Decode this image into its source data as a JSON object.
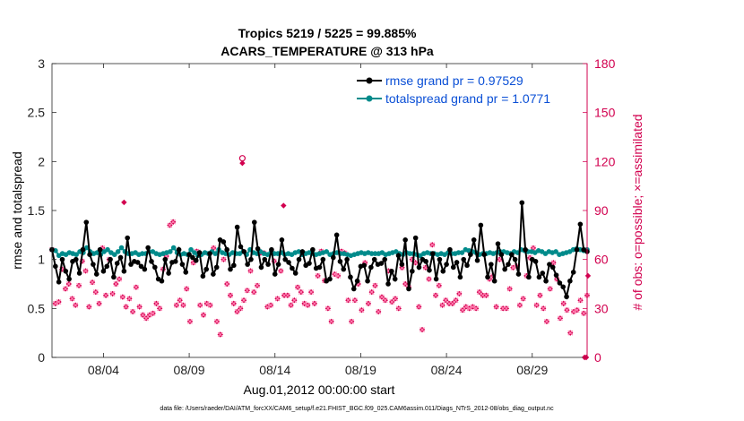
{
  "chart_data": {
    "type": "line",
    "title": "Tropics 5219 / 5225 = 99.885%",
    "subtitle": "ACARS_TEMPERATURE @ 313 hPa",
    "xlabel": "Aug.01,2012 00:00:00 start",
    "ylabel": "rmse and totalspread",
    "ylabel_right": "# of obs: o=possible; ×=assimilated",
    "footnote": "data file: /Users/raeder/DAI/ATM_forcXX/CAM6_setup/f.e21.FHIST_BGC.f09_025.CAM6assim.011/Diags_NTrS_2012-08/obs_diag_output.nc",
    "xlim": [
      1,
      32.2
    ],
    "ylim": [
      0,
      3
    ],
    "ylim_right": [
      0,
      180
    ],
    "x_ticks": [
      {
        "day": 4,
        "label": "08/04"
      },
      {
        "day": 9,
        "label": "08/09"
      },
      {
        "day": 14,
        "label": "08/14"
      },
      {
        "day": 19,
        "label": "08/19"
      },
      {
        "day": 24,
        "label": "08/24"
      },
      {
        "day": 29,
        "label": "08/29"
      }
    ],
    "y_ticks": [
      {
        "value": 0,
        "label": "0"
      },
      {
        "value": 0.5,
        "label": "0.5"
      },
      {
        "value": 1,
        "label": "1"
      },
      {
        "value": 1.5,
        "label": "1.5"
      },
      {
        "value": 2,
        "label": "2"
      },
      {
        "value": 2.5,
        "label": "2.5"
      },
      {
        "value": 3,
        "label": "3"
      }
    ],
    "y_ticks_right": [
      {
        "value": 0,
        "label": "0"
      },
      {
        "value": 30,
        "label": "30"
      },
      {
        "value": 60,
        "label": "60"
      },
      {
        "value": 90,
        "label": "90"
      },
      {
        "value": 120,
        "label": "120"
      },
      {
        "value": 150,
        "label": "150"
      },
      {
        "value": 180,
        "label": "180"
      }
    ],
    "series": [
      {
        "name": "rmse grand pr = 0.97529",
        "color": "#000000",
        "marker": "filled-circle",
        "values": [
          1.1,
          0.93,
          0.77,
          1.0,
          0.88,
          0.8,
          0.98,
          1.0,
          0.86,
          1.1,
          1.38,
          1.05,
          0.95,
          0.85,
          1.1,
          0.88,
          0.93,
          1.0,
          0.82,
          0.96,
          1.02,
          0.88,
          1.22,
          0.95,
          0.98,
          0.97,
          0.93,
          0.9,
          1.12,
          0.98,
          0.92,
          0.8,
          0.78,
          1.0,
          0.86,
          0.97,
          0.98,
          1.1,
          0.95,
          0.87,
          1.05,
          1.02,
          0.99,
          1.07,
          0.83,
          0.9,
          1.06,
          0.85,
          0.92,
          1.2,
          1.18,
          1.1,
          0.9,
          0.94,
          1.33,
          1.13,
          1.08,
          0.95,
          1.0,
          1.38,
          1.11,
          0.92,
          1.0,
          0.95,
          1.1,
          0.85,
          0.95,
          1.2,
          1.0,
          0.97,
          0.91,
          0.86,
          1.0,
          1.08,
          0.94,
          0.96,
          1.1,
          0.91,
          0.92,
          1.0,
          0.78,
          0.8,
          1.02,
          1.25,
          0.98,
          0.9,
          1.0,
          0.82,
          0.7,
          0.78,
          0.93,
          0.94,
          0.78,
          0.92,
          1.0,
          0.95,
          0.96,
          1.0,
          0.75,
          0.88,
          0.8,
          1.04,
          0.95,
          1.2,
          0.7,
          0.88,
          1.22,
          0.92,
          1.0,
          0.98,
          0.89,
          1.06,
          0.8,
          1.0,
          0.88,
          0.95,
          1.1,
          0.92,
          0.97,
          0.82,
          1.0,
          0.94,
          1.05,
          1.2,
          0.99,
          1.35,
          1.05,
          0.82,
          0.95,
          0.78,
          1.16,
          1.05,
          0.9,
          0.95,
          1.05,
          1.0,
          0.85,
          1.58,
          1.1,
          0.82,
          1.0,
          0.98,
          0.82,
          0.86,
          0.78,
          0.95,
          0.92,
          0.84,
          0.76,
          0.72,
          0.62,
          0.78,
          0.87,
          1.1,
          1.36,
          1.1,
          1.08
        ]
      },
      {
        "name": "totalspread grand pr = 1.0771",
        "color": "#008b8b",
        "marker": "filled-circle",
        "values": [
          1.1,
          1.09,
          1.04,
          1.06,
          1.05,
          1.07,
          1.06,
          1.05,
          1.08,
          1.07,
          1.12,
          1.08,
          1.06,
          1.07,
          1.05,
          1.08,
          1.1,
          1.07,
          1.05,
          1.08,
          1.12,
          1.08,
          1.06,
          1.06,
          1.07,
          1.05,
          1.06,
          1.06,
          1.08,
          1.08,
          1.06,
          1.05,
          1.06,
          1.07,
          1.08,
          1.12,
          1.07,
          1.05,
          1.06,
          1.05,
          1.1,
          1.07,
          1.04,
          1.05,
          1.07,
          1.06,
          1.08,
          1.06,
          1.1,
          1.07,
          1.06,
          1.05,
          1.07,
          1.06,
          1.06,
          1.08,
          1.05,
          1.1,
          1.07,
          1.06,
          1.08,
          1.06,
          1.05,
          1.07,
          1.06,
          1.06,
          1.07,
          1.05,
          1.06,
          1.05,
          1.07,
          1.08,
          1.05,
          1.06,
          1.07,
          1.06,
          1.05,
          1.06,
          1.07,
          1.08,
          1.05,
          1.06,
          1.07,
          1.06,
          1.06,
          1.05,
          1.04,
          1.05,
          1.06,
          1.07,
          1.06,
          1.07,
          1.06,
          1.06,
          1.06,
          1.07,
          1.05,
          1.06,
          1.07,
          1.08,
          1.06,
          1.05,
          1.07,
          1.06,
          1.06,
          1.05,
          1.04,
          1.06,
          1.07,
          1.06,
          1.06,
          1.05,
          1.06,
          1.05,
          1.07,
          1.06,
          1.06,
          1.07,
          1.07,
          1.1,
          1.09,
          1.08,
          1.07,
          1.05,
          1.06,
          1.06,
          1.07,
          1.06,
          1.07,
          1.08,
          1.08,
          1.07,
          1.06,
          1.08,
          1.07,
          1.1,
          1.09,
          1.08,
          1.08,
          1.07,
          1.09,
          1.08,
          1.06,
          1.08,
          1.07,
          1.08,
          1.05,
          1.06,
          1.07,
          1.08,
          1.1,
          1.11,
          1.1,
          1.09,
          1.1
        ]
      },
      {
        "name": "# of obs assimilated",
        "color": "#d2004f",
        "marker": "x",
        "axis": "right",
        "values": [
          66,
          33,
          34,
          54,
          42,
          45,
          36,
          32,
          44,
          59,
          53,
          31,
          46,
          40,
          33,
          67,
          38,
          60,
          39,
          45,
          48,
          37,
          31,
          36,
          28,
          43,
          31,
          26,
          24,
          26,
          27,
          33,
          30,
          54,
          62,
          81,
          83,
          32,
          35,
          32,
          42,
          22,
          58,
          65,
          32,
          26,
          33,
          32,
          67,
          22,
          14,
          60,
          45,
          38,
          33,
          28,
          30,
          35,
          41,
          53,
          40,
          44,
          64,
          64,
          31,
          32,
          59,
          36,
          53,
          38,
          38,
          32,
          35,
          43,
          40,
          33,
          32,
          40,
          33,
          50,
          65,
          47,
          30,
          22,
          51,
          50,
          65,
          64,
          35,
          22,
          35,
          45,
          29,
          58,
          33,
          40,
          44,
          28,
          37,
          35,
          53,
          34,
          36,
          30,
          55,
          45,
          43,
          60,
          58,
          31,
          17,
          55,
          48,
          69,
          38,
          44,
          32,
          35,
          33,
          33,
          35,
          39,
          29,
          31,
          30,
          31,
          30,
          40,
          38,
          38,
          48,
          50,
          31,
          60,
          30,
          30,
          42,
          55,
          56,
          32,
          36,
          50,
          61,
          67,
          32,
          38,
          30,
          22,
          42,
          58,
          48,
          24,
          33,
          29,
          15,
          28,
          29,
          35,
          27,
          38
        ]
      },
      {
        "name": "# of obs possible",
        "color": "#d2004f",
        "marker": "o",
        "axis": "right",
        "values": [
          66,
          33,
          34,
          54,
          42,
          45,
          36,
          32,
          44,
          59,
          53,
          31,
          46,
          40,
          33,
          67,
          38,
          60,
          39,
          45,
          48,
          37,
          31,
          36,
          28,
          43,
          31,
          26,
          24,
          26,
          27,
          33,
          30,
          54,
          62,
          81,
          83,
          32,
          35,
          32,
          42,
          22,
          58,
          65,
          32,
          26,
          33,
          32,
          67,
          22,
          14,
          60,
          45,
          38,
          33,
          28,
          30,
          35,
          41,
          53,
          40,
          44,
          64,
          64,
          31,
          32,
          59,
          36,
          53,
          38,
          38,
          32,
          35,
          43,
          40,
          33,
          32,
          40,
          33,
          50,
          65,
          47,
          30,
          22,
          51,
          50,
          65,
          64,
          35,
          22,
          35,
          45,
          29,
          58,
          33,
          40,
          44,
          28,
          37,
          35,
          53,
          34,
          36,
          30,
          55,
          45,
          43,
          60,
          58,
          31,
          17,
          55,
          48,
          69,
          38,
          44,
          32,
          35,
          33,
          33,
          35,
          39,
          29,
          31,
          30,
          31,
          30,
          40,
          38,
          38,
          48,
          50,
          31,
          60,
          30,
          30,
          42,
          55,
          56,
          32,
          36,
          50,
          61,
          67,
          32,
          38,
          30,
          22,
          42,
          58,
          48,
          24,
          33,
          29,
          15,
          28,
          29,
          35,
          27,
          38
        ]
      }
    ],
    "obs_extra_points": [
      {
        "day": 5.2,
        "value": 95
      },
      {
        "day": 12.1,
        "value": 122
      },
      {
        "day": 12.1,
        "value": 119
      },
      {
        "day": 14.5,
        "value": 93
      },
      {
        "day": 25.3,
        "value": 65
      },
      {
        "day": 32.05,
        "value": 0
      },
      {
        "day": 32.15,
        "value": 0
      },
      {
        "day": 32.25,
        "value": 50
      }
    ]
  }
}
